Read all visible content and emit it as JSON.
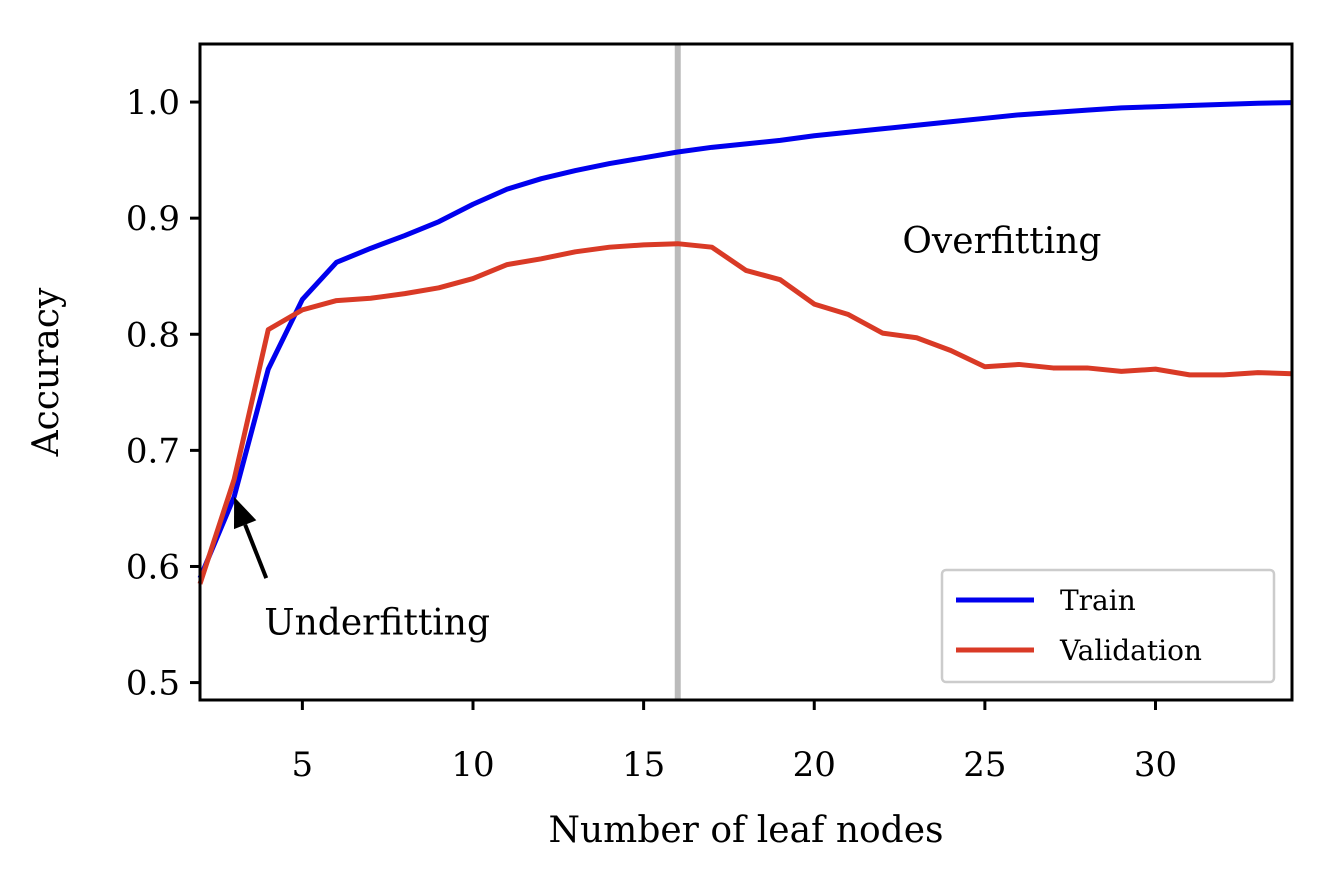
{
  "chart_data": {
    "type": "line",
    "xlabel": "Number of leaf nodes",
    "ylabel": "Accuracy",
    "xlim": [
      2,
      34
    ],
    "ylim": [
      0.485,
      1.05
    ],
    "xticks": [
      5,
      10,
      15,
      20,
      25,
      30
    ],
    "xtick_labels": [
      "5",
      "10",
      "15",
      "20",
      "25",
      "30"
    ],
    "yticks": [
      0.5,
      0.6,
      0.7,
      0.8,
      0.9,
      1.0
    ],
    "ytick_labels": [
      "0.5",
      "0.6",
      "0.7",
      "0.8",
      "0.9",
      "1.0"
    ],
    "grid": false,
    "legend_position": "lower-right",
    "x": [
      2,
      3,
      4,
      5,
      6,
      7,
      8,
      9,
      10,
      11,
      12,
      13,
      14,
      15,
      16,
      17,
      18,
      19,
      20,
      21,
      22,
      23,
      24,
      25,
      26,
      27,
      28,
      29,
      30,
      31,
      32,
      33,
      34
    ],
    "series": [
      {
        "name": "Train",
        "color": "#0000ee",
        "values": [
          0.59,
          0.66,
          0.77,
          0.83,
          0.862,
          0.874,
          0.885,
          0.897,
          0.912,
          0.925,
          0.934,
          0.941,
          0.947,
          0.952,
          0.957,
          0.961,
          0.964,
          0.967,
          0.971,
          0.974,
          0.977,
          0.98,
          0.983,
          0.986,
          0.989,
          0.991,
          0.993,
          0.995,
          0.996,
          0.997,
          0.998,
          0.999,
          0.9995
        ]
      },
      {
        "name": "Validation",
        "color": "#d93a26",
        "values": [
          0.585,
          0.675,
          0.804,
          0.821,
          0.829,
          0.831,
          0.835,
          0.84,
          0.848,
          0.86,
          0.865,
          0.871,
          0.875,
          0.877,
          0.878,
          0.875,
          0.855,
          0.847,
          0.826,
          0.817,
          0.801,
          0.797,
          0.786,
          0.772,
          0.774,
          0.771,
          0.771,
          0.768,
          0.77,
          0.765,
          0.765,
          0.767,
          0.766
        ]
      }
    ],
    "vline": {
      "x": 16,
      "color": "#bbbbbb"
    },
    "annotations": [
      {
        "text": "Overfitting",
        "x": 25.5,
        "y": 0.87
      },
      {
        "text": "Underfitting",
        "x": 4,
        "y": 0.55,
        "arrow_to": [
          3,
          0.66
        ]
      }
    ]
  }
}
